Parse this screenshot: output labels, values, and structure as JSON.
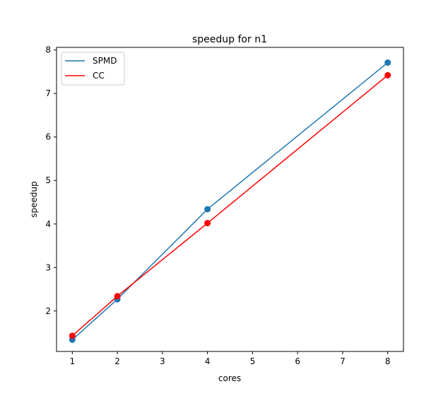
{
  "chart_data": {
    "type": "line",
    "title": "speedup for n1",
    "xlabel": "cores",
    "ylabel": "speedup",
    "xlim": [
      0.65,
      8.35
    ],
    "ylim": [
      1.07,
      8.06
    ],
    "xticks": [
      "1",
      "2",
      "3",
      "4",
      "5",
      "6",
      "7",
      "8"
    ],
    "yticks": [
      "2",
      "3",
      "4",
      "5",
      "6",
      "7",
      "8"
    ],
    "grid": false,
    "legend_position": "top-left",
    "x": [
      1,
      2,
      4,
      8
    ],
    "series": [
      {
        "name": "SPMD",
        "color": "#1f77b4",
        "values": [
          1.34,
          2.27,
          4.34,
          7.71
        ],
        "marker": "circle"
      },
      {
        "name": "CC",
        "color": "#ff0000",
        "values": [
          1.43,
          2.34,
          4.02,
          7.42
        ],
        "marker": "circle"
      }
    ]
  }
}
